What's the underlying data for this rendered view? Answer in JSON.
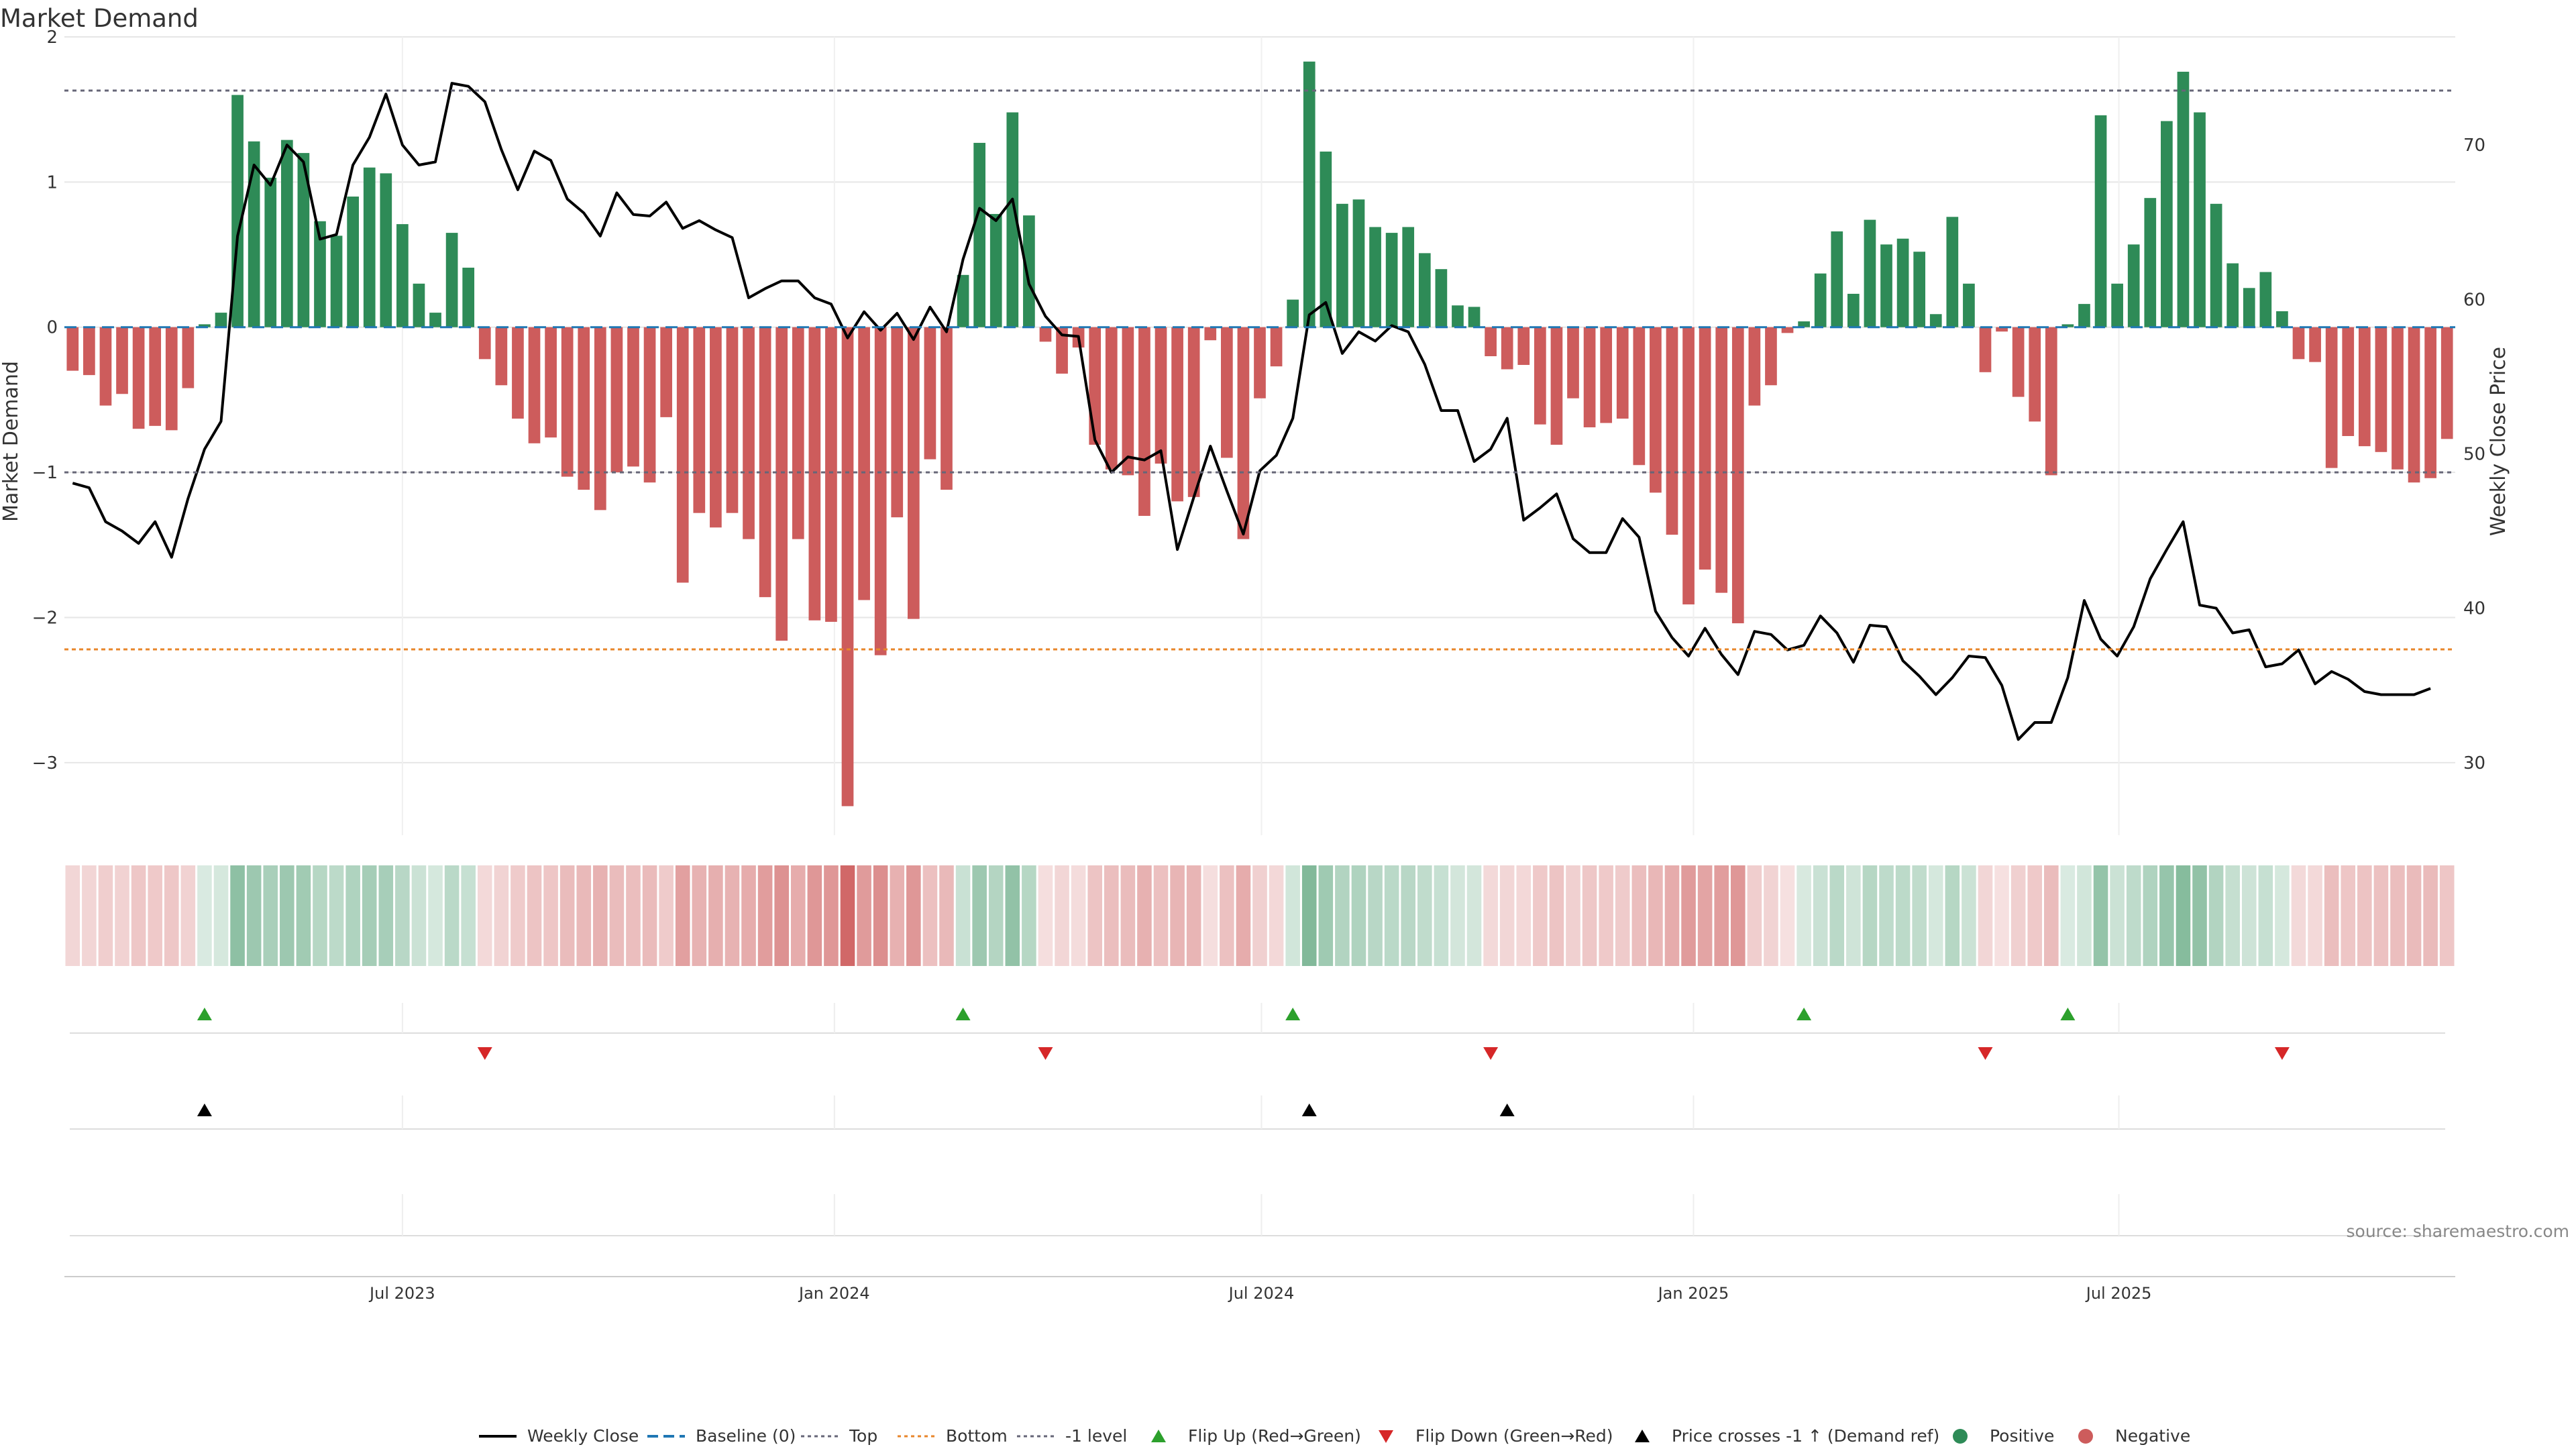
{
  "chart_data": {
    "type": "bar",
    "title": "Market Demand",
    "ylabel": "Market Demand",
    "y2label": "Weekly Close Price",
    "source": "source: sharemaestro.com",
    "ylim": [
      -3.5,
      2.0
    ],
    "y2lim": [
      25.3,
      77.0
    ],
    "y_ticks": [
      2,
      1,
      0,
      -1,
      -2,
      -3
    ],
    "y_tick_labels": [
      "2",
      "1",
      "0",
      "−1",
      "−2",
      "−3"
    ],
    "y2_ticks": [
      70,
      60,
      50,
      40,
      30
    ],
    "x_ticks": [
      "Jul 2023",
      "Jan 2024",
      "Jul 2024",
      "Jan 2025",
      "Jul 2025"
    ],
    "x_tick_weeks": [
      20.5,
      46.7,
      72.6,
      98.8,
      124.6
    ],
    "reference_lines": {
      "top": 1.63,
      "bottom": -2.22,
      "minus_one": -1.0,
      "baseline": 0
    },
    "colors": {
      "positive": "#2e8b57",
      "negative": "#cd5c5c",
      "price": "#000000",
      "flip_up": "#2ca02c",
      "flip_down": "#d62728",
      "cross": "#000000",
      "ref_grey": "#666677",
      "bottom_orange": "#e8862a",
      "baseline_blue": "#1f77b4"
    },
    "demand": [
      -0.3,
      -0.33,
      -0.54,
      -0.46,
      -0.7,
      -0.68,
      -0.71,
      -0.42,
      0.02,
      0.1,
      1.6,
      1.28,
      1.03,
      1.29,
      1.2,
      0.73,
      0.63,
      0.9,
      1.1,
      1.06,
      0.71,
      0.3,
      0.1,
      0.65,
      0.41,
      -0.22,
      -0.4,
      -0.63,
      -0.8,
      -0.76,
      -1.03,
      -1.12,
      -1.26,
      -1.0,
      -0.96,
      -1.07,
      -0.62,
      -1.76,
      -1.28,
      -1.38,
      -1.28,
      -1.46,
      -1.86,
      -2.16,
      -1.46,
      -2.02,
      -2.03,
      -3.3,
      -1.88,
      -2.26,
      -1.31,
      -2.01,
      -0.91,
      -1.12,
      0.36,
      1.27,
      0.78,
      1.48,
      0.77,
      -0.1,
      -0.32,
      -0.14,
      -0.81,
      -0.98,
      -1.02,
      -1.3,
      -0.94,
      -1.2,
      -1.17,
      -0.09,
      -0.9,
      -1.46,
      -0.49,
      -0.27,
      0.19,
      1.83,
      1.21,
      0.85,
      0.88,
      0.69,
      0.65,
      0.69,
      0.51,
      0.4,
      0.15,
      0.14,
      -0.2,
      -0.29,
      -0.26,
      -0.67,
      -0.81,
      -0.49,
      -0.69,
      -0.66,
      -0.63,
      -0.95,
      -1.14,
      -1.43,
      -1.91,
      -1.67,
      -1.83,
      -2.04,
      -0.54,
      -0.4,
      -0.04,
      0.04,
      0.37,
      0.66,
      0.23,
      0.74,
      0.57,
      0.61,
      0.52,
      0.09,
      0.76,
      0.3,
      -0.31,
      -0.03,
      -0.48,
      -0.65,
      -1.02,
      0.02,
      0.16,
      1.46,
      0.3,
      0.57,
      0.89,
      1.42,
      1.76,
      1.48,
      0.85,
      0.44,
      0.27,
      0.38,
      0.11,
      -0.22,
      -0.24,
      -0.97,
      -0.75,
      -0.82,
      -0.86,
      -0.98,
      -1.07,
      -1.04,
      -0.77
    ],
    "price": [
      48.1,
      47.8,
      45.6,
      45.0,
      44.2,
      45.6,
      43.3,
      47.1,
      50.3,
      52.1,
      64.1,
      68.7,
      67.4,
      70.0,
      68.9,
      63.9,
      64.2,
      68.7,
      70.5,
      73.3,
      70.0,
      68.7,
      68.9,
      74.0,
      73.8,
      72.8,
      69.7,
      67.1,
      69.6,
      69.0,
      66.5,
      65.6,
      64.1,
      66.9,
      65.5,
      65.4,
      66.3,
      64.6,
      65.1,
      64.5,
      64.0,
      60.1,
      60.7,
      61.2,
      61.2,
      60.1,
      59.7,
      57.5,
      59.2,
      58.0,
      59.1,
      57.4,
      59.5,
      57.9,
      62.6,
      65.9,
      65.1,
      66.5,
      61.0,
      58.9,
      57.7,
      57.6,
      50.9,
      48.8,
      49.8,
      49.6,
      50.2,
      43.8,
      47.2,
      50.5,
      47.6,
      44.8,
      48.9,
      49.9,
      52.3,
      59.0,
      59.8,
      56.5,
      57.9,
      57.3,
      58.3,
      57.9,
      55.8,
      52.8,
      52.8,
      49.5,
      50.3,
      52.3,
      45.7,
      46.5,
      47.4,
      44.5,
      43.6,
      43.6,
      45.8,
      44.6,
      39.8,
      38.1,
      36.9,
      38.7,
      37.0,
      35.7,
      38.5,
      38.3,
      37.3,
      37.6,
      39.5,
      38.4,
      36.5,
      38.9,
      38.8,
      36.6,
      35.6,
      34.4,
      35.5,
      36.9,
      36.8,
      35.0,
      31.5,
      32.6,
      32.6,
      35.5,
      40.5,
      38.0,
      36.9,
      38.8,
      41.9,
      43.8,
      45.6,
      40.2,
      40.0,
      38.4,
      38.6,
      36.2,
      36.4,
      37.3,
      35.1,
      35.9,
      35.4,
      34.6,
      34.4,
      34.4,
      34.4,
      34.8
    ],
    "flip_up_weeks": [
      8,
      54,
      74,
      105,
      121
    ],
    "flip_down_weeks": [
      25,
      59,
      86,
      116,
      134
    ],
    "cross_weeks": [
      8,
      75,
      87
    ],
    "legend": [
      "Weekly Close",
      "Baseline (0)",
      "Top",
      "Bottom",
      "-1 level",
      "Flip Up (Red→Green)",
      "Flip Down (Green→Red)",
      "Price crosses -1 ↑ (Demand ref)",
      "Positive",
      "Negative"
    ],
    "legend_position": "bottom-center",
    "grid": true
  }
}
